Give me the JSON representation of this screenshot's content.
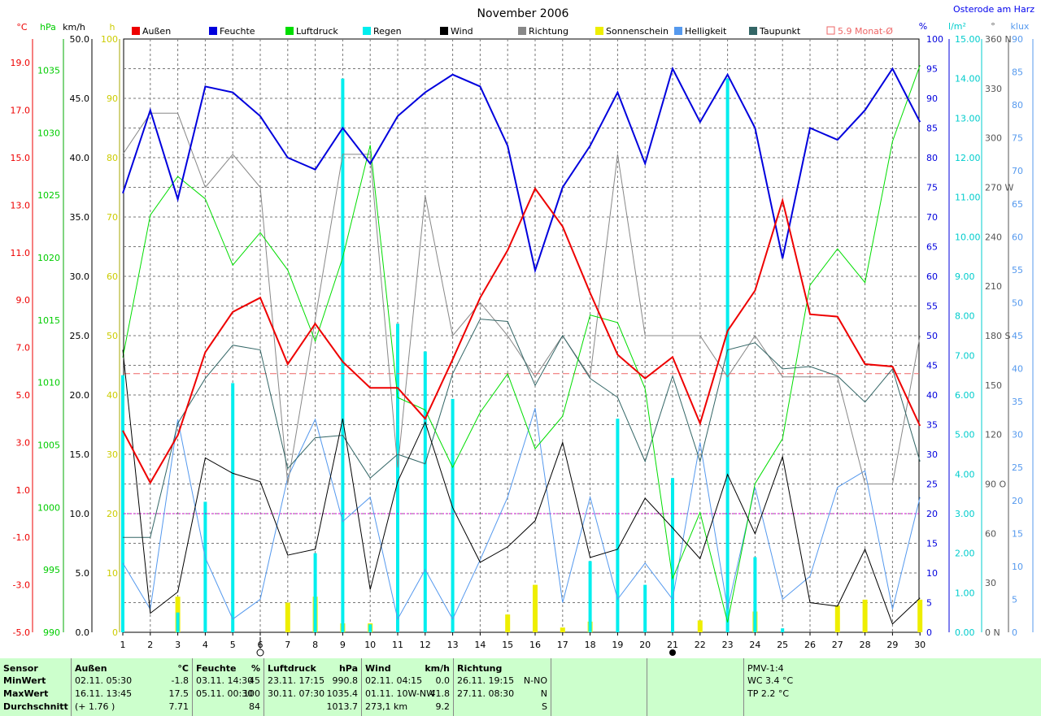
{
  "title": "November 2006",
  "location": "Osterode am Harz",
  "unit_labels": {
    "celsius": "°C",
    "hpa": "hPa",
    "kmh": "km/h",
    "hours": "h",
    "percent": "%",
    "rain": "l/m²",
    "degrees": "°",
    "klux": "klux"
  },
  "legend": [
    {
      "name": "Außen",
      "color": "#ee0000"
    },
    {
      "name": "Feuchte",
      "color": "#0000dd"
    },
    {
      "name": "Luftdruck",
      "color": "#00dd00"
    },
    {
      "name": "Regen",
      "color": "#00eeee"
    },
    {
      "name": "Wind",
      "color": "#000000"
    },
    {
      "name": "Richtung",
      "color": "#888888"
    },
    {
      "name": "Sonnenschein",
      "color": "#eeee00"
    },
    {
      "name": "Helligkeit",
      "color": "#5599ee"
    },
    {
      "name": "Taupunkt",
      "color": "#336666"
    },
    {
      "name": "5.9 Monat-Ø",
      "color": "#ee6666",
      "outline": true
    }
  ],
  "axes": {
    "temp_ticks": [
      "19.0",
      "17.0",
      "15.0",
      "13.0",
      "11.0",
      "9.0",
      "7.0",
      "5.0",
      "3.0",
      "1.0",
      "-1.0",
      "-3.0",
      "-5.0"
    ],
    "hpa_ticks": [
      "1035",
      "1030",
      "1025",
      "1020",
      "1015",
      "1010",
      "1005",
      "1000",
      "995",
      "990"
    ],
    "kmh_ticks": [
      "50.0",
      "45.0",
      "40.0",
      "35.0",
      "30.0",
      "25.0",
      "20.0",
      "15.0",
      "10.0",
      "5.0",
      "0.0"
    ],
    "hours_ticks": [
      "100",
      "90",
      "80",
      "70",
      "60",
      "50",
      "40",
      "30",
      "20",
      "10",
      "0"
    ],
    "percent_ticks": [
      "100",
      "95",
      "90",
      "85",
      "80",
      "75",
      "70",
      "65",
      "60",
      "55",
      "50",
      "45",
      "40",
      "35",
      "30",
      "25",
      "20",
      "15",
      "10",
      "5",
      "0"
    ],
    "rain_ticks": [
      "15.00",
      "14.00",
      "13.00",
      "12.00",
      "11.00",
      "10.00",
      "9.00",
      "8.00",
      "7.00",
      "6.00",
      "5.00",
      "4.00",
      "3.00",
      "2.00",
      "1.00",
      "0.00"
    ],
    "dir_ticks": [
      "360 N",
      "330",
      "300",
      "270 W",
      "240",
      "210",
      "180 S",
      "150",
      "120",
      "90  O",
      "60",
      "30",
      "0    N"
    ],
    "klux_ticks": [
      "90",
      "85",
      "80",
      "75",
      "70",
      "65",
      "60",
      "55",
      "50",
      "45",
      "40",
      "35",
      "30",
      "25",
      "20",
      "15",
      "10",
      "5",
      "0"
    ],
    "days": [
      "1",
      "2",
      "3",
      "4",
      "5",
      "6",
      "7",
      "8",
      "9",
      "10",
      "11",
      "12",
      "13",
      "14",
      "15",
      "16",
      "17",
      "18",
      "19",
      "20",
      "21",
      "22",
      "23",
      "24",
      "25",
      "26",
      "27",
      "28",
      "29",
      "30"
    ]
  },
  "chart_data": {
    "type": "line",
    "title": "November 2006",
    "x": [
      1,
      2,
      3,
      4,
      5,
      6,
      7,
      8,
      9,
      10,
      11,
      12,
      13,
      14,
      15,
      16,
      17,
      18,
      19,
      20,
      21,
      22,
      23,
      24,
      25,
      26,
      27,
      28,
      29,
      30
    ],
    "xlim": [
      1,
      30
    ],
    "series": [
      {
        "name": "Außen",
        "unit": "°C",
        "axis": [
          -5,
          20
        ],
        "color": "#ee0000",
        "values": [
          3.5,
          1.3,
          3.3,
          6.8,
          8.5,
          9.1,
          6.3,
          8.0,
          6.4,
          5.3,
          5.3,
          4.0,
          6.5,
          9.1,
          11.1,
          13.7,
          12.1,
          9.3,
          6.7,
          5.7,
          6.6,
          3.8,
          7.7,
          9.4,
          13.2,
          8.4,
          8.3,
          6.3,
          6.2,
          3.7
        ]
      },
      {
        "name": "Feuchte",
        "unit": "%",
        "axis": [
          0,
          100
        ],
        "color": "#0000dd",
        "values": [
          74,
          88,
          73,
          92,
          91,
          87,
          80,
          78,
          85,
          79,
          87,
          91,
          94,
          92,
          82,
          61,
          75,
          82,
          91,
          79,
          95,
          86,
          94,
          85,
          63,
          85,
          83,
          88,
          95,
          86
        ]
      },
      {
        "name": "Luftdruck",
        "unit": "hPa",
        "axis": [
          990,
          1037.5
        ],
        "color": "#00dd00",
        "values": [
          1012,
          1023.4,
          1026.5,
          1024.7,
          1019.4,
          1022.0,
          1019.0,
          1013.3,
          1020.0,
          1029.0,
          1008.8,
          1007.8,
          1003.2,
          1007.6,
          1010.7,
          1004.7,
          1007.3,
          1015.4,
          1014.8,
          1009.5,
          994.3,
          999.6,
          990.8,
          1001.9,
          1005.5,
          1017.8,
          1020.7,
          1018.0,
          1029.3,
          1035.4
        ]
      },
      {
        "name": "Regen",
        "unit": "l/m²",
        "axis": [
          0,
          15
        ],
        "type": "bar",
        "color": "#00eeee",
        "values": [
          6.5,
          0,
          0.5,
          3.3,
          6.3,
          0,
          0,
          2.0,
          14.0,
          0.2,
          7.8,
          7.1,
          5.9,
          0,
          0,
          0,
          0,
          1.8,
          5.4,
          1.2,
          3.9,
          0,
          14.0,
          1.9,
          0.1,
          0,
          0,
          0,
          0,
          0
        ]
      },
      {
        "name": "Wind",
        "unit": "km/h",
        "axis": [
          0,
          50
        ],
        "color": "#000000",
        "values": [
          23.8,
          1.6,
          3.4,
          14.7,
          13.4,
          12.7,
          6.5,
          7.0,
          18.0,
          3.6,
          12.7,
          17.7,
          10.5,
          5.9,
          7.2,
          9.4,
          16.0,
          6.3,
          7.0,
          11.3,
          8.8,
          6.2,
          13.3,
          8.3,
          14.8,
          2.5,
          2.2,
          7.0,
          0.7,
          2.9
        ]
      },
      {
        "name": "Richtung",
        "unit": "°",
        "axis": [
          0,
          360
        ],
        "color": "#888888",
        "values": [
          290,
          315,
          315,
          270,
          290,
          270,
          90,
          190,
          290,
          290,
          100,
          265,
          180,
          200,
          180,
          155,
          180,
          155,
          290,
          180,
          180,
          180,
          155,
          180,
          155,
          155,
          155,
          90,
          90,
          180
        ]
      },
      {
        "name": "Sonnenschein",
        "unit": "h",
        "axis": [
          0,
          100
        ],
        "type": "bar",
        "color": "#eeee00",
        "values": [
          0,
          0,
          6,
          0,
          0,
          0,
          5,
          6,
          1.5,
          1.5,
          0,
          0,
          0,
          0,
          3,
          8,
          0.8,
          1.8,
          0,
          0,
          0,
          2,
          0,
          3.5,
          0,
          0,
          4.5,
          5.5,
          0,
          5.5
        ]
      },
      {
        "name": "Helligkeit",
        "unit": "klux",
        "axis": [
          0,
          90
        ],
        "color": "#5599ee",
        "values": [
          10.5,
          3.5,
          32.3,
          11.3,
          2.0,
          5.0,
          23.5,
          32.3,
          16.8,
          20.5,
          2.0,
          9.5,
          2.0,
          11.0,
          20.5,
          34.0,
          4.5,
          20.5,
          5.0,
          10.5,
          5.0,
          28.8,
          3.5,
          22.0,
          5.0,
          8.5,
          22.0,
          24.5,
          3.5,
          20.5
        ]
      },
      {
        "name": "Taupunkt",
        "unit": "°C",
        "axis": [
          -5,
          20
        ],
        "color": "#336666",
        "values": [
          -1.0,
          -1.0,
          3.8,
          5.7,
          7.1,
          6.9,
          1.9,
          3.2,
          3.3,
          1.5,
          2.5,
          2.1,
          5.9,
          8.2,
          8.1,
          5.4,
          7.5,
          5.7,
          4.9,
          2.2,
          5.8,
          2.2,
          6.9,
          7.2,
          6.1,
          6.2,
          5.8,
          4.7,
          6.1,
          2.2
        ]
      }
    ],
    "reference_lines": [
      {
        "name": "5.9 Monat-Ø",
        "value": 5.9,
        "unit": "°C",
        "color": "#ee6666"
      },
      {
        "value": 20,
        "unit": "%",
        "color": "#cc00cc"
      }
    ],
    "moon_phases": [
      {
        "day": 6,
        "phase": "first-quarter"
      },
      {
        "day": 21,
        "phase": "new-moon"
      }
    ]
  },
  "summary": {
    "sensor": {
      "title": "Sensor",
      "labels": [
        "MinWert",
        "MaxWert",
        "Durchschnitt"
      ]
    },
    "aussen": {
      "title": "Außen",
      "unit": "°C",
      "min_time": "02.11.  05:30",
      "min_val": "-1.8",
      "max_time": "16.11.  13:45",
      "max_val": "17.5",
      "avg_note": "(+ 1.76 )",
      "avg_val": "7.71"
    },
    "feuchte": {
      "title": "Feuchte",
      "unit": "%",
      "min_time": "03.11.  14:30",
      "min_val": "45",
      "max_time": "05.11.  00:30",
      "max_val": "100",
      "avg_val": "84"
    },
    "luftdruck": {
      "title": "Luftdruck",
      "unit": "hPa",
      "min_time": "23.11.  17:15",
      "min_val": "990.8",
      "max_time": "30.11.  07:30",
      "max_val": "1035.4",
      "avg_val": "1013.7"
    },
    "wind": {
      "title": "Wind",
      "unit": "km/h",
      "min_time": "02.11.  04:15",
      "min_val": "0.0",
      "max_time": "01.11.  10W-NW",
      "max_val": "41.8",
      "avg_note": "273,1 km",
      "avg_val": "9.2"
    },
    "richtung": {
      "title": "Richtung",
      "min_time": "26.11.  19:15",
      "min_val": "N-NO",
      "max_time": "27.11.  08:30",
      "max_val": "N",
      "avg_val": "S"
    },
    "pmv": {
      "title": "PMV-1:4",
      "wc": "WC 3.4 °C",
      "tp": "TP 2.2 °C"
    }
  }
}
